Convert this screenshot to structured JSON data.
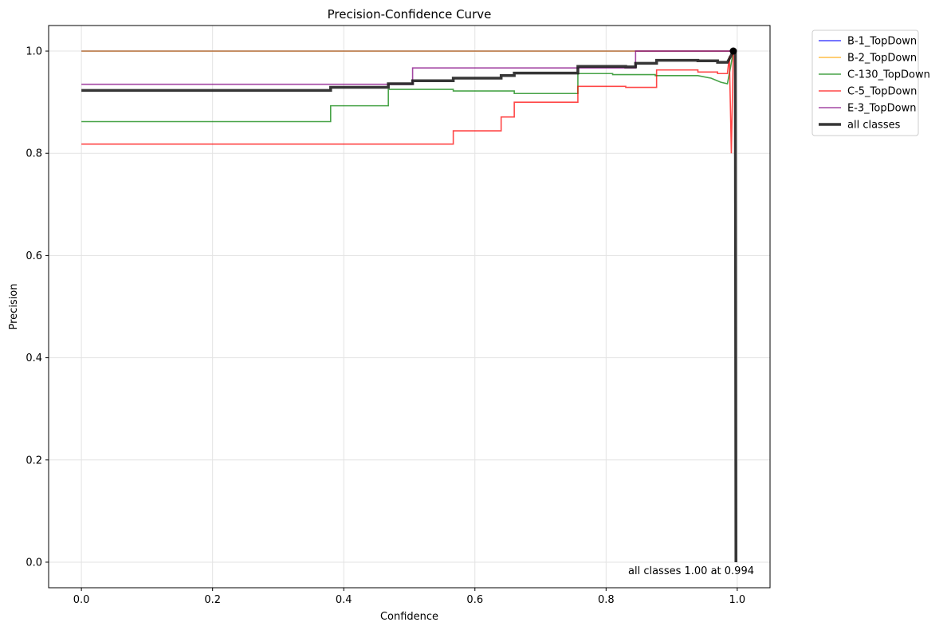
{
  "chart_data": {
    "type": "line",
    "title": "Precision-Confidence Curve",
    "xlabel": "Confidence",
    "ylabel": "Precision",
    "xlim": [
      -0.05,
      1.05
    ],
    "ylim": [
      -0.05,
      1.05
    ],
    "xticks": [
      0.0,
      0.2,
      0.4,
      0.6,
      0.8,
      1.0
    ],
    "xtick_labels": [
      "0.0",
      "0.2",
      "0.4",
      "0.6",
      "0.8",
      "1.0"
    ],
    "yticks": [
      0.0,
      0.2,
      0.4,
      0.6,
      0.8,
      1.0
    ],
    "ytick_labels": [
      "0.0",
      "0.2",
      "0.4",
      "0.6",
      "0.8",
      "1.0"
    ],
    "grid": true,
    "legend_position": "outside top-right",
    "annotation": "all classes 1.00 at 0.994",
    "best_point": {
      "x": 0.994,
      "y": 1.0
    },
    "series": [
      {
        "name": "B-1_TopDown",
        "color": "#0000ff",
        "points": [
          [
            0.0,
            1.0
          ],
          [
            0.994,
            1.0
          ],
          [
            0.994,
            1.0
          ]
        ]
      },
      {
        "name": "B-2_TopDown",
        "color": "#ffa500",
        "points": [
          [
            0.0,
            1.0
          ],
          [
            0.994,
            1.0
          ],
          [
            0.995,
            1.0
          ]
        ]
      },
      {
        "name": "C-130_TopDown",
        "color": "#008000",
        "points": [
          [
            0.0,
            0.862
          ],
          [
            0.38,
            0.862
          ],
          [
            0.38,
            0.893
          ],
          [
            0.468,
            0.893
          ],
          [
            0.468,
            0.925
          ],
          [
            0.567,
            0.925
          ],
          [
            0.567,
            0.922
          ],
          [
            0.66,
            0.922
          ],
          [
            0.66,
            0.917
          ],
          [
            0.757,
            0.917
          ],
          [
            0.757,
            0.956
          ],
          [
            0.81,
            0.956
          ],
          [
            0.81,
            0.954
          ],
          [
            0.875,
            0.954
          ],
          [
            0.875,
            0.952
          ],
          [
            0.94,
            0.952
          ],
          [
            0.96,
            0.947
          ],
          [
            0.975,
            0.939
          ],
          [
            0.985,
            0.936
          ],
          [
            0.99,
            0.97
          ],
          [
            0.994,
            1.0
          ],
          [
            0.996,
            1.0
          ]
        ]
      },
      {
        "name": "C-5_TopDown",
        "color": "#ff0000",
        "points": [
          [
            0.0,
            0.818
          ],
          [
            0.567,
            0.818
          ],
          [
            0.567,
            0.844
          ],
          [
            0.64,
            0.844
          ],
          [
            0.64,
            0.871
          ],
          [
            0.66,
            0.871
          ],
          [
            0.66,
            0.9
          ],
          [
            0.757,
            0.9
          ],
          [
            0.757,
            0.931
          ],
          [
            0.83,
            0.931
          ],
          [
            0.83,
            0.929
          ],
          [
            0.877,
            0.929
          ],
          [
            0.877,
            0.963
          ],
          [
            0.94,
            0.963
          ],
          [
            0.94,
            0.959
          ],
          [
            0.97,
            0.959
          ],
          [
            0.97,
            0.956
          ],
          [
            0.985,
            0.956
          ],
          [
            0.988,
            0.99
          ],
          [
            0.991,
            0.8
          ],
          [
            0.994,
            1.0
          ],
          [
            0.996,
            1.0
          ]
        ]
      },
      {
        "name": "E-3_TopDown",
        "color": "#800080",
        "points": [
          [
            0.0,
            0.935
          ],
          [
            0.505,
            0.935
          ],
          [
            0.505,
            0.967
          ],
          [
            0.845,
            0.967
          ],
          [
            0.845,
            1.0
          ],
          [
            0.996,
            1.0
          ]
        ]
      },
      {
        "name": "all classes",
        "color": "#1a1a1a",
        "points": [
          [
            0.0,
            0.923
          ],
          [
            0.38,
            0.923
          ],
          [
            0.38,
            0.929
          ],
          [
            0.468,
            0.929
          ],
          [
            0.468,
            0.936
          ],
          [
            0.505,
            0.936
          ],
          [
            0.505,
            0.942
          ],
          [
            0.567,
            0.942
          ],
          [
            0.567,
            0.947
          ],
          [
            0.64,
            0.947
          ],
          [
            0.64,
            0.952
          ],
          [
            0.66,
            0.952
          ],
          [
            0.66,
            0.957
          ],
          [
            0.757,
            0.957
          ],
          [
            0.757,
            0.97
          ],
          [
            0.83,
            0.97
          ],
          [
            0.83,
            0.969
          ],
          [
            0.845,
            0.969
          ],
          [
            0.845,
            0.976
          ],
          [
            0.877,
            0.976
          ],
          [
            0.877,
            0.982
          ],
          [
            0.94,
            0.982
          ],
          [
            0.94,
            0.981
          ],
          [
            0.97,
            0.981
          ],
          [
            0.97,
            0.978
          ],
          [
            0.985,
            0.978
          ],
          [
            0.99,
            0.99
          ],
          [
            0.994,
            1.0
          ],
          [
            0.997,
            1.0
          ],
          [
            0.998,
            0.0
          ]
        ]
      }
    ]
  }
}
